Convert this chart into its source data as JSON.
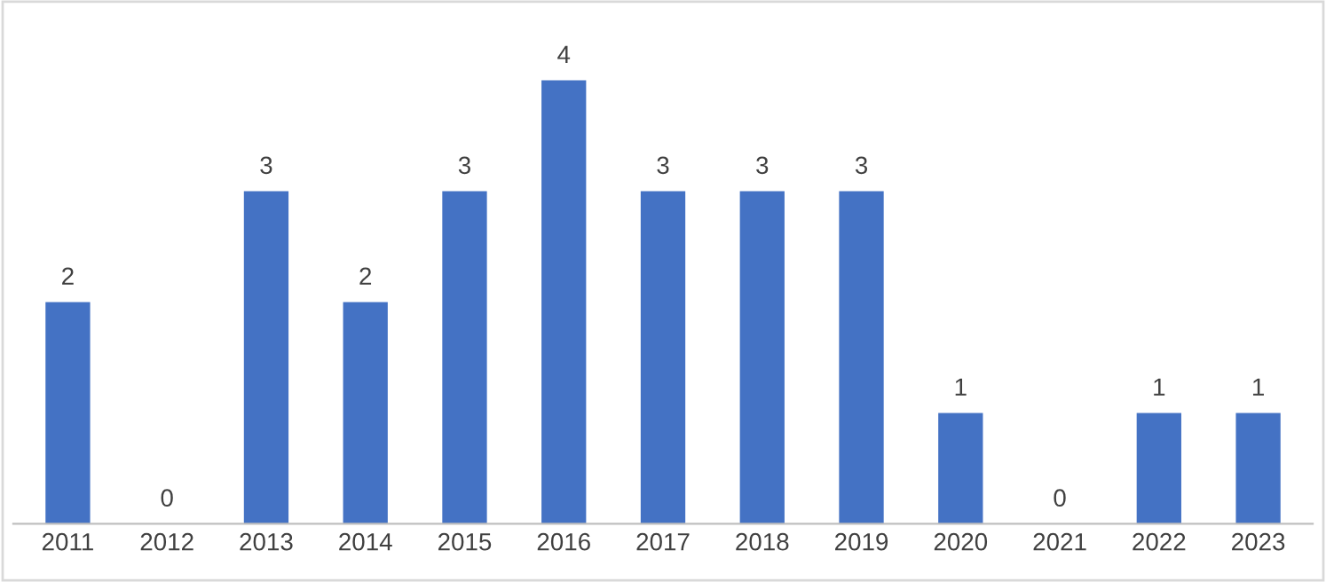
{
  "chart_data": {
    "type": "bar",
    "categories": [
      "2011",
      "2012",
      "2013",
      "2014",
      "2015",
      "2016",
      "2017",
      "2018",
      "2019",
      "2020",
      "2021",
      "2022",
      "2023"
    ],
    "values": [
      2,
      0,
      3,
      2,
      3,
      4,
      3,
      3,
      3,
      1,
      0,
      1,
      1
    ],
    "color": "#4472c4",
    "data_labels": true,
    "tick_labels": "x",
    "grid": false,
    "legend": false
  }
}
